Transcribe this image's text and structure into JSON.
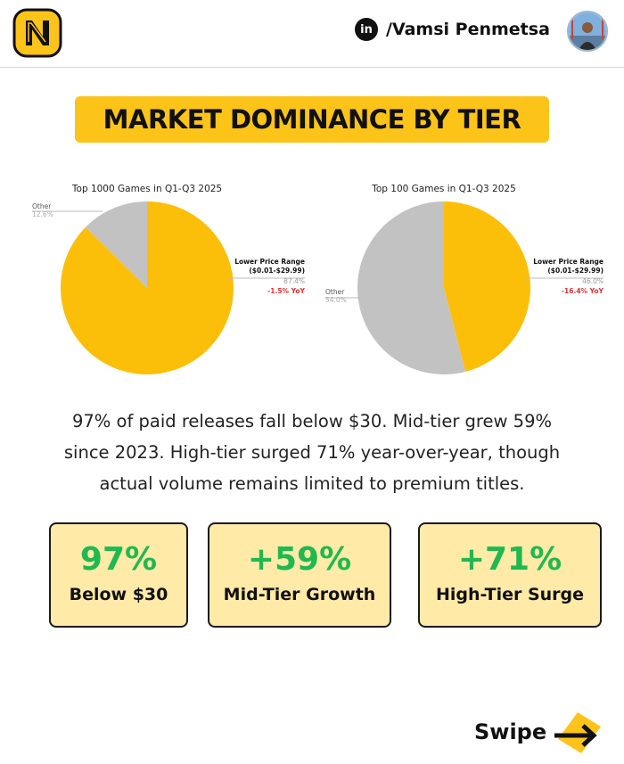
{
  "header": {
    "linkedin_icon_text": "in",
    "author": "/Vamsi Penmetsa"
  },
  "title": "MARKET DOMINANCE BY TIER",
  "chart_data": [
    {
      "type": "pie",
      "title": "Top 1000 Games in Q1-Q3 2025",
      "slices": [
        {
          "label": "Lower Price Range",
          "sublabel": "($0.01-$29.99)",
          "value": 87.4,
          "value_text": "87.4%",
          "change": "-1.5% YoY",
          "color": "#fbbf0a"
        },
        {
          "label": "Other",
          "value": 12.6,
          "value_text": "12.6%",
          "color": "#c2c2c2"
        }
      ]
    },
    {
      "type": "pie",
      "title": "Top 100 Games in Q1-Q3 2025",
      "slices": [
        {
          "label": "Lower Price Range",
          "sublabel": "($0.01-$29.99)",
          "value": 46.0,
          "value_text": "46.0%",
          "change": "-16.4% YoY",
          "color": "#fbbf0a"
        },
        {
          "label": "Other",
          "value": 54.0,
          "value_text": "54.0%",
          "color": "#c2c2c2"
        }
      ]
    }
  ],
  "description": [
    "97% of paid releases fall below $30. Mid-tier grew 59%",
    "since 2023. High-tier surged 71% year-over-year, though",
    "actual volume remains limited to premium titles."
  ],
  "stats": [
    {
      "value": "97%",
      "label": "Below $30"
    },
    {
      "value": "+59%",
      "label": "Mid-Tier Growth"
    },
    {
      "value": "+71%",
      "label": "High-Tier Surge"
    }
  ],
  "footer": {
    "swipe": "Swipe"
  },
  "colors": {
    "accent": "#fcc419",
    "pie_main": "#fbbf0a",
    "pie_other": "#c2c2c2",
    "stat_value": "#1fb950",
    "change_text": "#e03131",
    "card_bg": "#ffeaa7"
  }
}
